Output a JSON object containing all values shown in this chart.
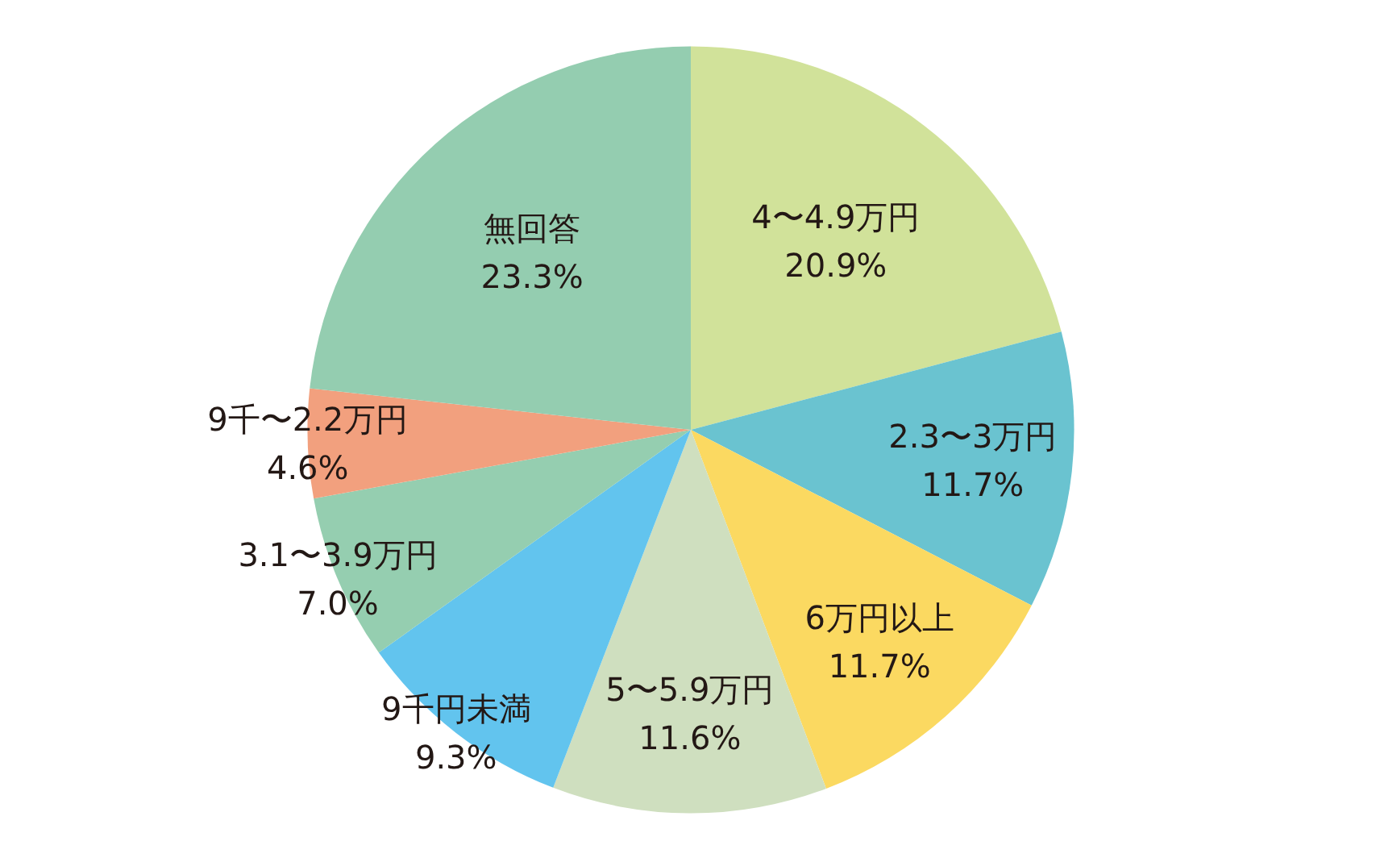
{
  "chart_data": {
    "type": "pie",
    "categories": [
      "4〜4.9万円",
      "2.3〜3万円",
      "6万円以上",
      "5〜5.9万円",
      "9千円未満",
      "3.1〜3.9万円",
      "9千〜2.2万円",
      "無回答"
    ],
    "values": [
      20.9,
      11.7,
      11.7,
      11.6,
      9.3,
      7.0,
      4.6,
      23.3
    ],
    "colors": [
      "#d1e29a",
      "#6ac3d0",
      "#fbd961",
      "#cfdfbf",
      "#62c4ee",
      "#95ceb0",
      "#f2a07e",
      "#94cdb0"
    ],
    "value_labels": [
      "20.9%",
      "11.7%",
      "11.7%",
      "11.6%",
      "9.3%",
      "7.0%",
      "4.6%",
      "23.3%"
    ]
  }
}
